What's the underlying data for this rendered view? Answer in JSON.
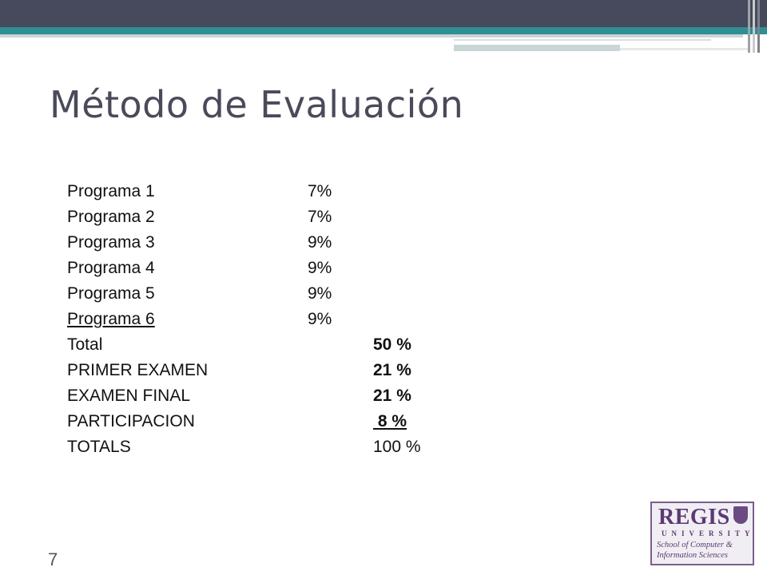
{
  "slide": {
    "title": "Método de Evaluación",
    "number": "7"
  },
  "grading": [
    {
      "label": "Programa 1",
      "percent": "7%",
      "underline": false
    },
    {
      "label": "Programa 2",
      "percent": "7%",
      "underline": false
    },
    {
      "label": "Programa 3",
      "percent": "9%",
      "underline": false
    },
    {
      "label": "Programa 4",
      "percent": "9%",
      "underline": false
    },
    {
      "label": "Programa 5",
      "percent": "9%",
      "underline": false
    },
    {
      "label": "Programa 6",
      "percent": "9%",
      "underline": true
    }
  ],
  "totals": [
    {
      "label": "Total",
      "percent": "50 %",
      "bold": true,
      "underline": false
    },
    {
      "label": "PRIMER EXAMEN",
      "percent": "21 %",
      "bold": true,
      "underline": false
    },
    {
      "label": "EXAMEN FINAL",
      "percent": "21 %",
      "bold": true,
      "underline": false
    },
    {
      "label": "PARTICIPACION",
      "percent": " 8 %",
      "bold": true,
      "underline": true
    },
    {
      "label": "TOTALS",
      "percent": "100 %",
      "bold": false,
      "underline": false
    }
  ],
  "logo": {
    "name": "REGIS",
    "subtitle": "UNIVERSITY",
    "school_line1": "School of Computer &",
    "school_line2": "Information Sciences"
  },
  "colors": {
    "banner": "#474a5c",
    "accent": "#2f8f92",
    "title": "#4a4a5a",
    "logo": "#5b3a73"
  }
}
